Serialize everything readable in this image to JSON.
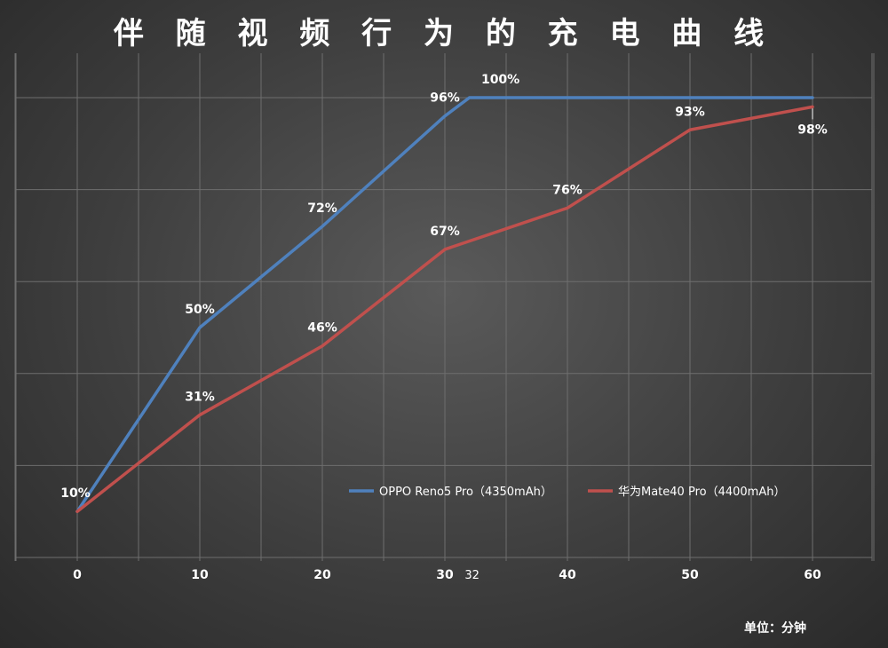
{
  "chart_data": {
    "type": "line",
    "title": "伴 随 视 频 行 为 的 充 电 曲 线",
    "unit_label": "单位：分钟",
    "x_ticks": [
      "0",
      "10",
      "20",
      "30",
      "32",
      "40",
      "50",
      "60"
    ],
    "x_tick_values": [
      0,
      10,
      20,
      30,
      32,
      40,
      50,
      60
    ],
    "xlim": [
      0,
      60
    ],
    "ylim": [
      0,
      100
    ],
    "grid": true,
    "legend_position": "bottom-right",
    "series": [
      {
        "name": "OPPO Reno5 Pro（4350mAh）",
        "color": "#4f81bd",
        "x": [
          0,
          10,
          20,
          30,
          32,
          60
        ],
        "values": [
          10,
          50,
          72,
          96,
          100,
          100
        ],
        "labels": [
          "10%",
          "50%",
          "72%",
          "96%",
          "100%",
          ""
        ]
      },
      {
        "name": "华为Mate40 Pro（4400mAh）",
        "color": "#c0504d",
        "x": [
          0,
          10,
          20,
          30,
          40,
          50,
          60
        ],
        "values": [
          10,
          31,
          46,
          67,
          76,
          93,
          98
        ],
        "labels": [
          "",
          "31%",
          "46%",
          "67%",
          "76%",
          "93%",
          "98%"
        ]
      }
    ]
  },
  "colors": {
    "grid": "#6e6e6e",
    "text": "#ffffff"
  }
}
